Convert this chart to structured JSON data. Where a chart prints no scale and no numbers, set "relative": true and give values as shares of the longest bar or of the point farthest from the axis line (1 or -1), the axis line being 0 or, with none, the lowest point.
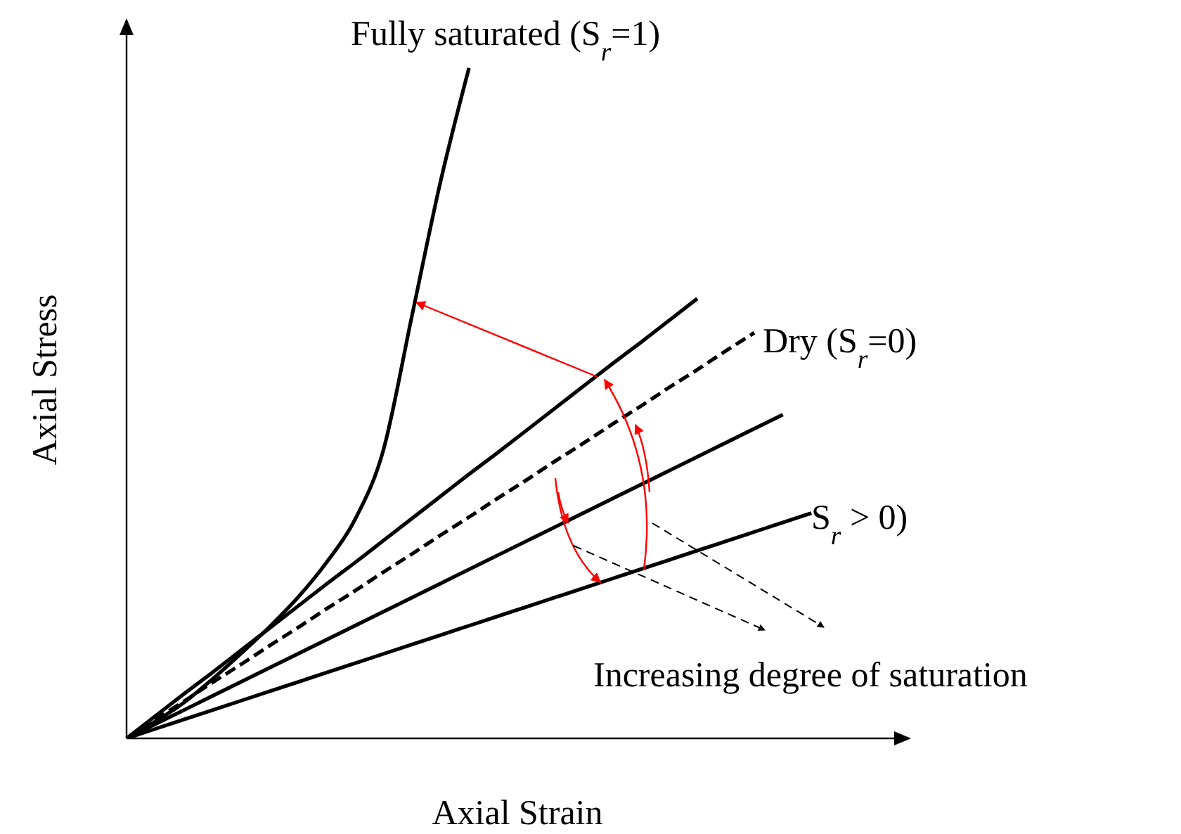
{
  "chart_data": {
    "type": "line",
    "relative": true,
    "xlabel": "Axial Strain",
    "ylabel": "Axial Stress",
    "marker": "none",
    "categories": [
      null,
      null,
      null,
      null,
      null,
      null,
      null,
      null,
      null,
      null,
      null,
      null,
      null,
      null,
      null,
      null,
      null,
      null,
      null,
      null,
      null,
      null,
      null,
      null,
      null,
      null,
      null,
      null
    ],
    "series": [
      {
        "name": "Fully saturated (S$_{r}$=1)",
        "color": "#000000",
        "line_style": "solid",
        "values": [
          0,
          0.025,
          0.053,
          0.088,
          0.126,
          0.166,
          0.21,
          0.262,
          0.326,
          0.43,
          0.63,
          0.83,
          1,
          null,
          null,
          null,
          null,
          null,
          null,
          null,
          null,
          null,
          null,
          null,
          null,
          null,
          null,
          null
        ]
      },
      {
        "color": "#000000",
        "line_style": "solid",
        "values": [
          0,
          0.033,
          0.066,
          0.098,
          0.131,
          0.164,
          0.197,
          0.23,
          0.262,
          0.295,
          0.328,
          0.361,
          0.394,
          0.426,
          0.459,
          0.492,
          0.525,
          0.558,
          0.59,
          0.623,
          0.656,
          null,
          null,
          null,
          null,
          null,
          null,
          null
        ]
      },
      {
        "name": "Dry (S$_{r}$=0)",
        "color": "#000000",
        "line_style": "dashed",
        "values": [
          0,
          0.028,
          0.055,
          0.083,
          0.11,
          0.138,
          0.165,
          0.193,
          0.22,
          0.248,
          0.275,
          0.303,
          0.33,
          0.358,
          0.385,
          0.413,
          0.44,
          0.468,
          0.495,
          0.523,
          0.55,
          0.578,
          0.605,
          null,
          null,
          null,
          null,
          null
        ]
      },
      {
        "color": "#000000",
        "line_style": "solid",
        "values": [
          0,
          0.021,
          0.042,
          0.063,
          0.084,
          0.105,
          0.126,
          0.147,
          0.168,
          0.189,
          0.21,
          0.231,
          0.252,
          0.273,
          0.294,
          0.315,
          0.336,
          0.357,
          0.378,
          0.399,
          0.42,
          0.441,
          0.462,
          0.483,
          null,
          null,
          null,
          null
        ]
      },
      {
        "color": "#000000",
        "line_style": "solid",
        "values": [
          0,
          0.014,
          0.028,
          0.042,
          0.056,
          0.07,
          0.084,
          0.098,
          0.112,
          0.126,
          0.14,
          0.154,
          0.168,
          0.182,
          0.196,
          0.21,
          0.224,
          0.238,
          0.252,
          0.266,
          0.28,
          0.294,
          0.308,
          0.322,
          0.336,
          null,
          null,
          null
        ]
      }
    ],
    "annotations": [
      "S$_{r}$ > 0)",
      "Increasing degree of saturation"
    ]
  }
}
